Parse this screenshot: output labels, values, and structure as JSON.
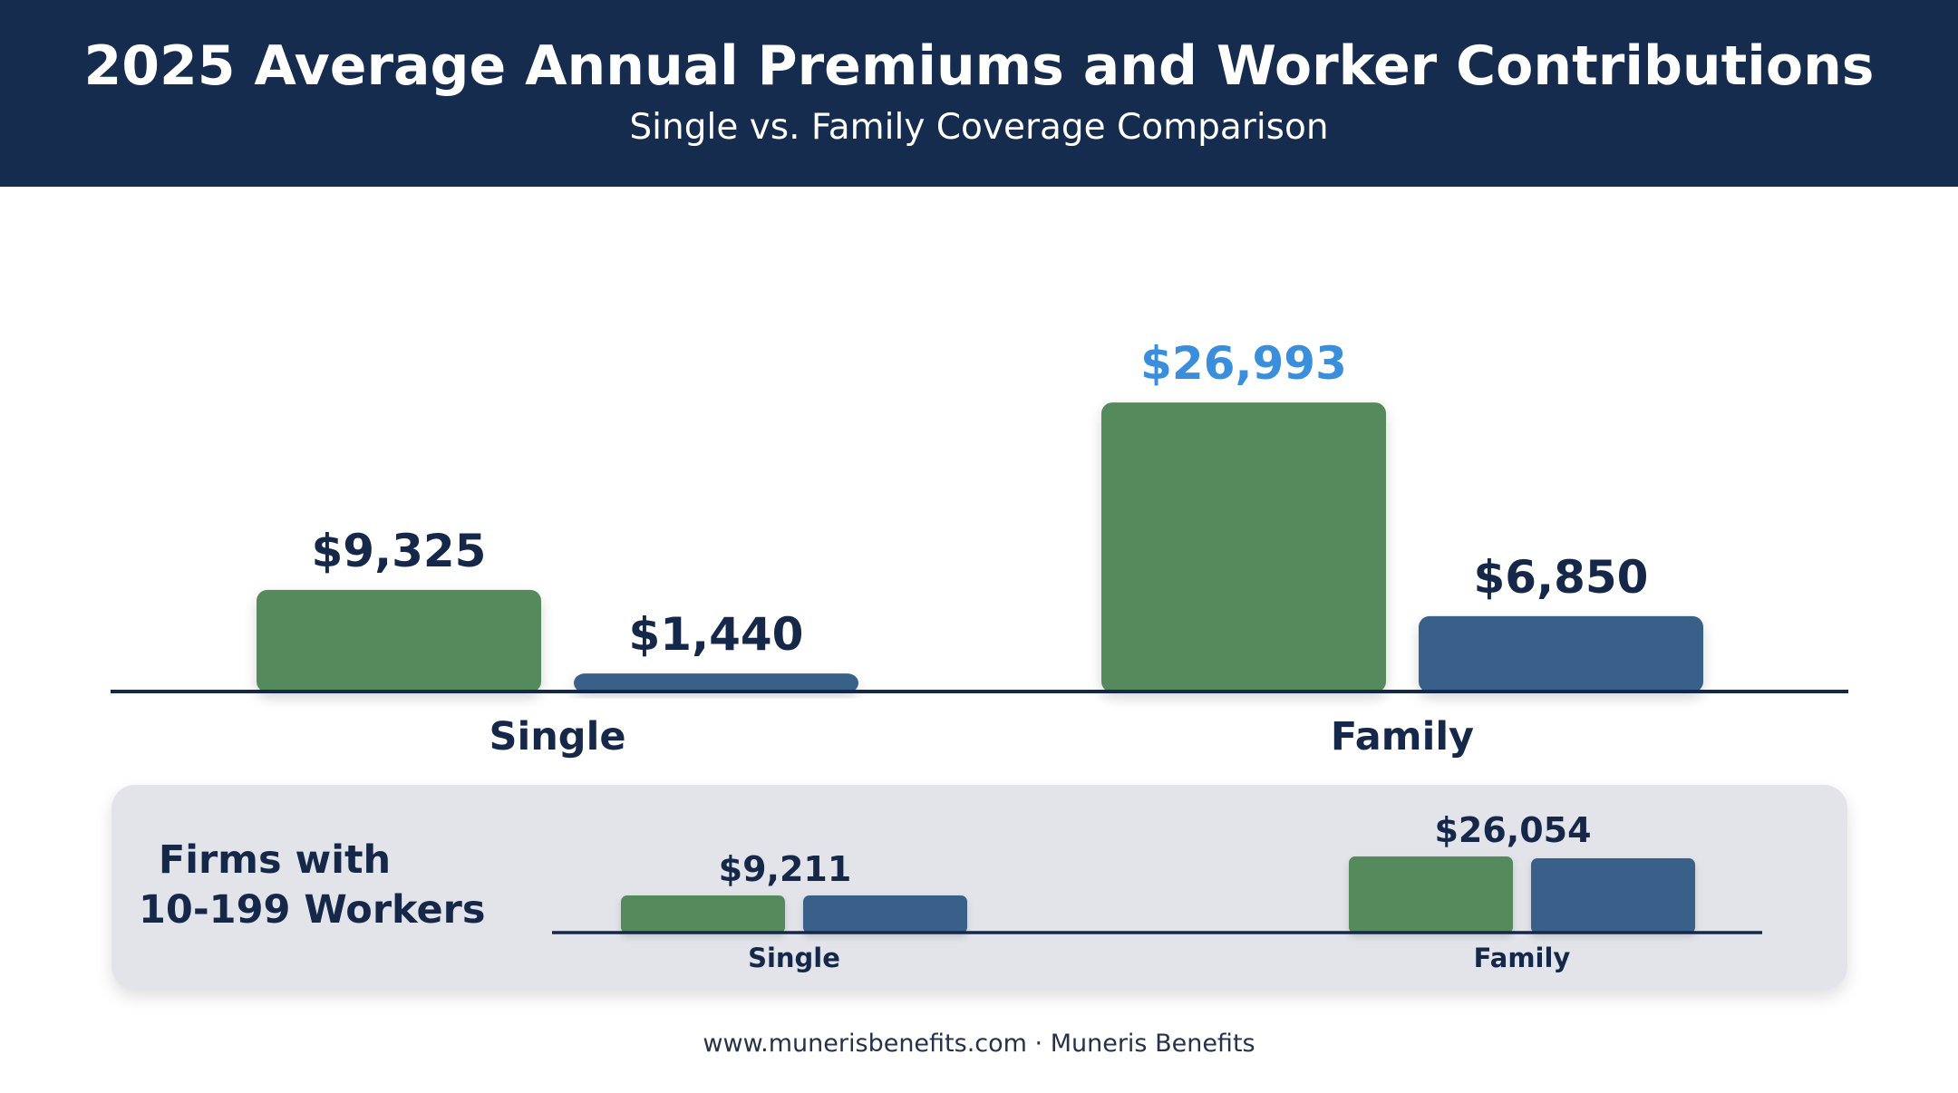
{
  "header": {
    "title": "2025 Average Annual Premiums and Worker Contributions",
    "subtitle": "Single vs. Family Coverage Comparison"
  },
  "colors": {
    "premium": "#548a5c",
    "worker": "#386088",
    "highlight_label": "#3a8fdc",
    "label": "#15284a",
    "header_bg": "#152c4e"
  },
  "chart_data": [
    {
      "type": "bar",
      "categories": [
        "Single",
        "Family"
      ],
      "series": [
        {
          "values": [
            9325,
            26993
          ],
          "color": "#548a5c"
        },
        {
          "values": [
            1440,
            6850
          ],
          "color": "#386088"
        }
      ],
      "data_labels": [
        [
          "$9,325",
          "$26,993"
        ],
        [
          "$1,440",
          "$6,850"
        ]
      ],
      "highlighted_label": "$26,993",
      "ylim": [
        0,
        27000
      ]
    },
    {
      "type": "bar",
      "title": "Firms with 10-199 Workers",
      "categories": [
        "Single",
        "Family"
      ],
      "series": [
        {
          "values": [
            9211,
            26054
          ],
          "color": "#548a5c"
        },
        {
          "values": [
            null,
            null
          ],
          "color": "#386088"
        }
      ],
      "category_labels": [
        "$9,211",
        "$26,054"
      ],
      "ylim": [
        0,
        27000
      ]
    }
  ],
  "panel": {
    "label_line1": "Firms with",
    "label_line2": "10-199 Workers"
  },
  "footer": {
    "text": "www.munerisbenefits.com · Muneris Benefits"
  }
}
